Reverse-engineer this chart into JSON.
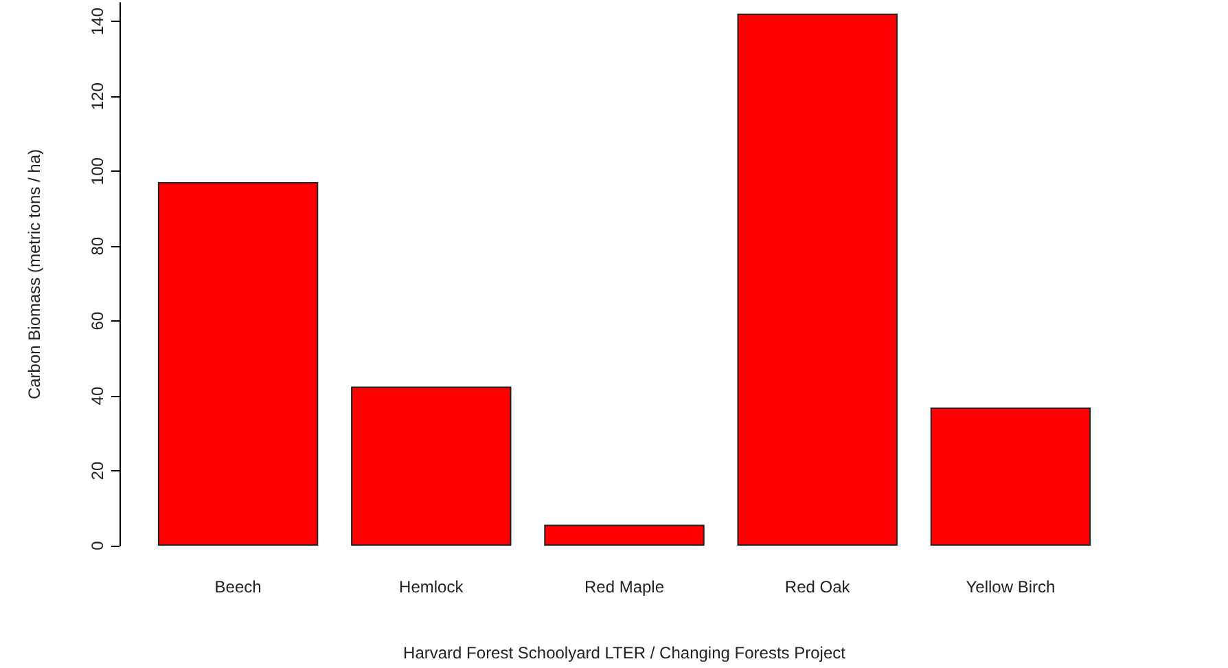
{
  "chart_data": {
    "type": "bar",
    "xlabel": "Harvard Forest Schoolyard LTER / Changing Forests Project",
    "ylabel": "Carbon Biomass (metric tons / ha)",
    "categories": [
      "Beech",
      "Hemlock",
      "Red Maple",
      "Red Oak",
      "Yellow Birch"
    ],
    "values": [
      97.1,
      42.5,
      5.6,
      142.1,
      36.9
    ],
    "color": "#ff0000",
    "ylim": [
      0,
      145
    ],
    "yticks": [
      0,
      20,
      40,
      60,
      80,
      100,
      120,
      140
    ],
    "grid": false
  }
}
